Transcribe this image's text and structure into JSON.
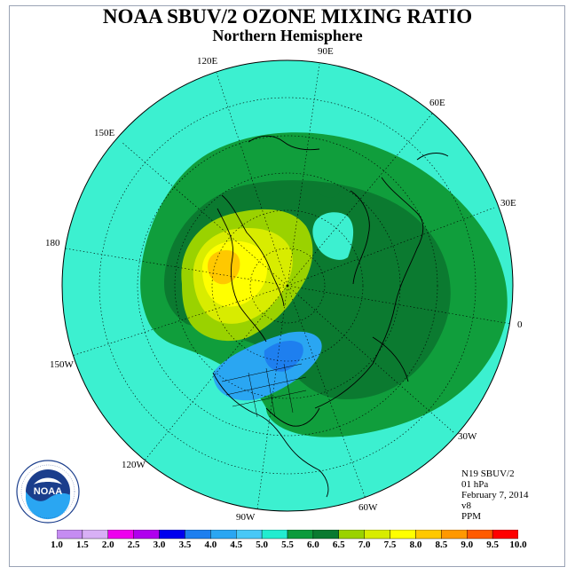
{
  "title": "NOAA SBUV/2 OZONE MIXING RATIO",
  "subtitle": "Northern Hemisphere",
  "longitude_labels": {
    "lon_90e": "90E",
    "lon_120e": "120E",
    "lon_60e": "60E",
    "lon_150e": "150E",
    "lon_30e": "30E",
    "lon_180": "180",
    "lon_0": "0",
    "lon_150w": "150W",
    "lon_30w": "30W",
    "lon_120w": "120W",
    "lon_60w": "60W",
    "lon_90w": "90W"
  },
  "info": {
    "instrument": "N19 SBUV/2",
    "level": "01 hPa",
    "date": "February 7, 2014",
    "version": "v8",
    "units": "PPM"
  },
  "colorbar": {
    "ticks": [
      "1.0",
      "1.5",
      "2.0",
      "2.5",
      "3.0",
      "3.5",
      "4.0",
      "4.5",
      "5.0",
      "5.5",
      "6.0",
      "6.5",
      "7.0",
      "7.5",
      "8.0",
      "8.5",
      "9.0",
      "9.5",
      "10.0"
    ],
    "colors": [
      "#c58cf2",
      "#d8b0f5",
      "#ee00ee",
      "#b000ee",
      "#0000ee",
      "#1e7fef",
      "#2aa6f2",
      "#48c8f6",
      "#22ecd0",
      "#0c9a3c",
      "#0a7a30",
      "#9ad200",
      "#d8ec00",
      "#ffff00",
      "#ffc800",
      "#ff9800",
      "#ff5a00",
      "#ff0000",
      "#8b5a2b"
    ]
  },
  "map_colors": {
    "ocean_field": "#3cf0d0",
    "level_5_5": "#109e3c",
    "level_6_0": "#0b7a30",
    "level_6_5": "#9ad200",
    "level_7_0": "#d8ec00",
    "level_7_5": "#ffff00",
    "level_8_0": "#ffc800",
    "level_4_0": "#2aa6f2",
    "level_3_5": "#1e7fef"
  },
  "logo": {
    "text": "NOAA",
    "ring_text": "NATIONAL OCEANIC AND ATMOSPHERIC ADMINISTRATION · U.S. DEPARTMENT OF COMMERCE"
  }
}
